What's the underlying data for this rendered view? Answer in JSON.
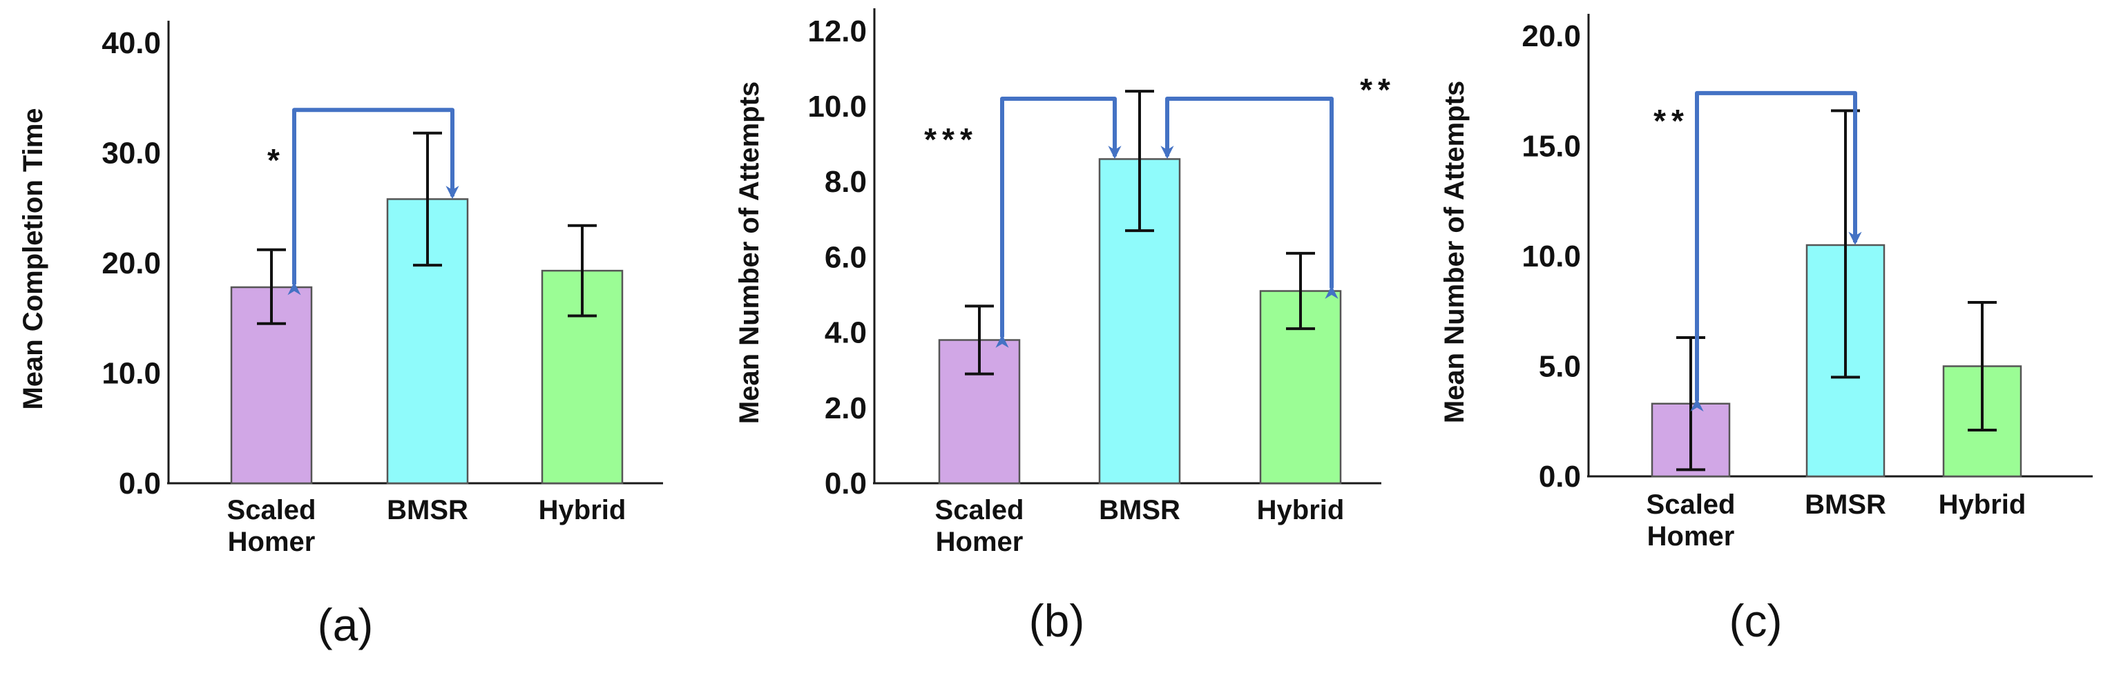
{
  "colors": {
    "axis": "#1a1a1a",
    "bar_outline": "#555555",
    "error_bar": "#111111",
    "arrow": "#4472c4",
    "categories": [
      "#d1a7e6",
      "#8ffbfb",
      "#9bfd95"
    ]
  },
  "chart_data": [
    {
      "panel": "(a)",
      "type": "bar",
      "categories": [
        "Scaled Homer",
        "BMSR",
        "Hybrid"
      ],
      "category_lines": [
        [
          "Scaled",
          "Homer"
        ],
        [
          "BMSR"
        ],
        [
          "Hybrid"
        ]
      ],
      "values": [
        17.8,
        25.8,
        19.3
      ],
      "error_low": [
        14.5,
        19.8,
        15.2
      ],
      "error_high": [
        21.2,
        31.8,
        23.4
      ],
      "ylabel": "Mean Completion Time",
      "ylim": [
        0,
        42
      ],
      "yticks": [
        0,
        10,
        20,
        30,
        40
      ],
      "ytick_labels": [
        "0.0",
        "10.0",
        "20.0",
        "30.0",
        "40.0"
      ],
      "significance": [
        {
          "from": "BMSR",
          "to": "Scaled Homer",
          "stars": "*",
          "bracket_y": 33.9
        }
      ]
    },
    {
      "panel": "(b)",
      "type": "bar",
      "categories": [
        "Scaled Homer",
        "BMSR",
        "Hybrid"
      ],
      "category_lines": [
        [
          "Scaled",
          "Homer"
        ],
        [
          "BMSR"
        ],
        [
          "Hybrid"
        ]
      ],
      "values": [
        3.8,
        8.6,
        5.1
      ],
      "error_low": [
        2.9,
        6.7,
        4.1
      ],
      "error_high": [
        4.7,
        10.4,
        6.1
      ],
      "ylabel": "Mean Number of Attempts",
      "ylim": [
        0,
        12.6
      ],
      "yticks": [
        0,
        2,
        4,
        6,
        8,
        10,
        12
      ],
      "ytick_labels": [
        "0.0",
        "2.0",
        "4.0",
        "6.0",
        "8.0",
        "10.0",
        "12.0"
      ],
      "significance": [
        {
          "from": "BMSR",
          "to": "Scaled Homer",
          "stars": "***",
          "bracket_y": 10.2
        },
        {
          "from": "BMSR",
          "to": "Hybrid",
          "stars": "**",
          "bracket_y": 10.2
        }
      ]
    },
    {
      "panel": "(c)",
      "type": "bar",
      "categories": [
        "Scaled Homer",
        "BMSR",
        "Hybrid"
      ],
      "category_lines": [
        [
          "Scaled",
          "Homer"
        ],
        [
          "BMSR"
        ],
        [
          "Hybrid"
        ]
      ],
      "values": [
        3.3,
        10.5,
        5.0
      ],
      "error_low": [
        0.3,
        4.5,
        2.1
      ],
      "error_high": [
        6.3,
        16.6,
        7.9
      ],
      "ylabel": "Mean Number of Attempts",
      "ylim": [
        0,
        21
      ],
      "yticks": [
        0,
        5,
        10,
        15,
        20
      ],
      "ytick_labels": [
        "0.0",
        "5.0",
        "10.0",
        "15.0",
        "20.0"
      ],
      "significance": [
        {
          "from": "BMSR",
          "to": "Scaled Homer",
          "stars": "**",
          "bracket_y": 17.4
        }
      ]
    }
  ]
}
